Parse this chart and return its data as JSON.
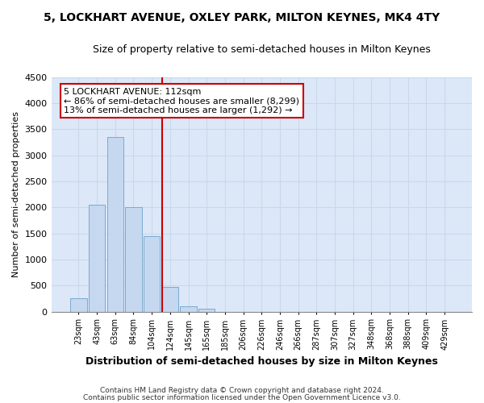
{
  "title": "5, LOCKHART AVENUE, OXLEY PARK, MILTON KEYNES, MK4 4TY",
  "subtitle": "Size of property relative to semi-detached houses in Milton Keynes",
  "xlabel": "Distribution of semi-detached houses by size in Milton Keynes",
  "ylabel": "Number of semi-detached properties",
  "footer1": "Contains HM Land Registry data © Crown copyright and database right 2024.",
  "footer2": "Contains public sector information licensed under the Open Government Licence v3.0.",
  "categories": [
    "23sqm",
    "43sqm",
    "63sqm",
    "84sqm",
    "104sqm",
    "124sqm",
    "145sqm",
    "165sqm",
    "185sqm",
    "206sqm",
    "226sqm",
    "246sqm",
    "266sqm",
    "287sqm",
    "307sqm",
    "327sqm",
    "348sqm",
    "368sqm",
    "388sqm",
    "409sqm",
    "429sqm"
  ],
  "values": [
    250,
    2050,
    3350,
    2000,
    1450,
    480,
    100,
    60,
    0,
    0,
    0,
    0,
    0,
    0,
    0,
    0,
    0,
    0,
    0,
    0,
    0
  ],
  "bar_color": "#c5d8f0",
  "bar_edge_color": "#7aaad0",
  "grid_color": "#c8d8ec",
  "plot_bg_color": "#dce8f8",
  "fig_bg_color": "#ffffff",
  "vline_color": "#cc0000",
  "annotation_text": "5 LOCKHART AVENUE: 112sqm\n← 86% of semi-detached houses are smaller (8,299)\n13% of semi-detached houses are larger (1,292) →",
  "annotation_box_color": "#ffffff",
  "annotation_box_edge": "#cc0000",
  "ylim": [
    0,
    4500
  ],
  "yticks": [
    0,
    500,
    1000,
    1500,
    2000,
    2500,
    3000,
    3500,
    4000,
    4500
  ],
  "vline_x_index": 5
}
